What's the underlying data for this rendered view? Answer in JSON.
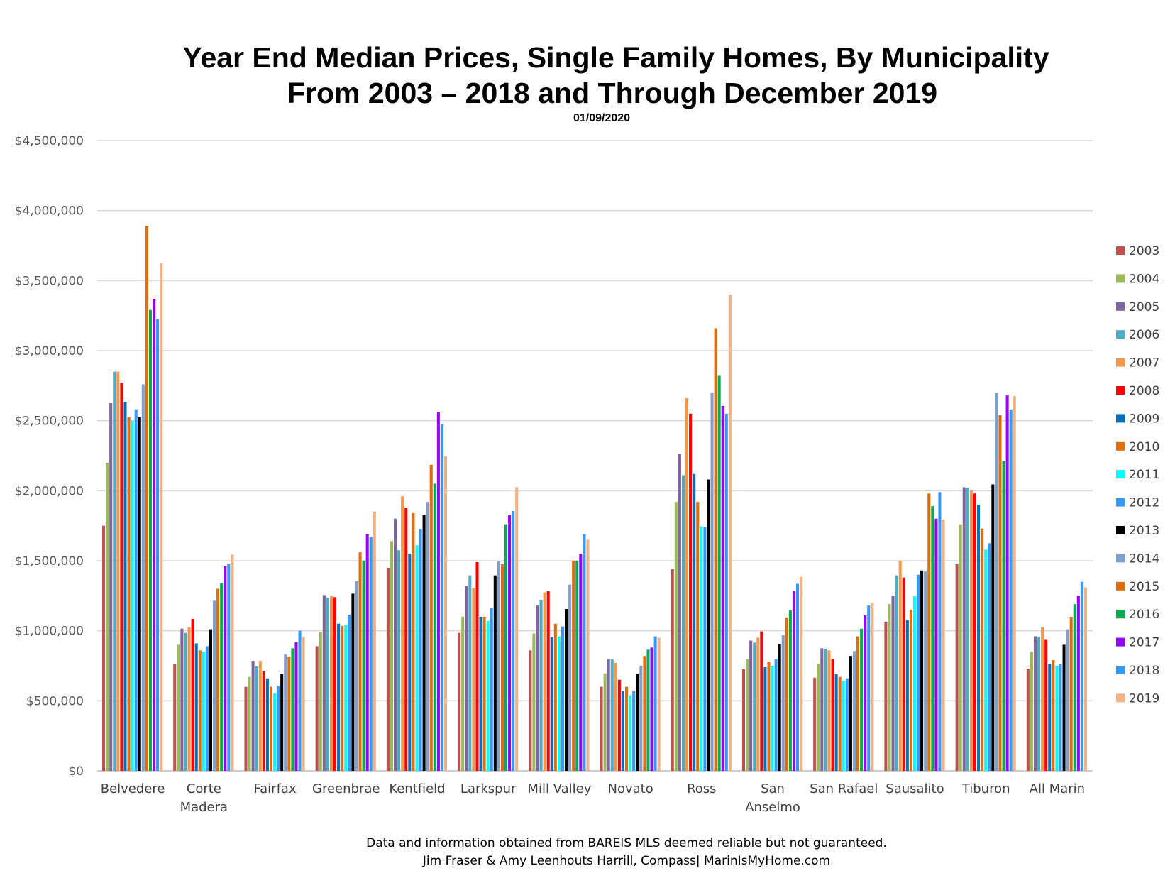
{
  "chart_data": {
    "type": "bar",
    "title": "Year End Median Prices, Single Family Homes, By Municipality",
    "subtitle": "From 2003 – 2018 and Through December 2019",
    "date": "01/09/2020",
    "ylim": [
      0,
      4500000
    ],
    "yticks": [
      "$0",
      "$500,000",
      "$1,000,000",
      "$1,500,000",
      "$2,000,000",
      "$2,500,000",
      "$3,000,000",
      "$3,500,000",
      "$4,000,000",
      "$4,500,000"
    ],
    "grid": true,
    "legend": "right",
    "categories": [
      [
        "Belvedere"
      ],
      [
        "Corte",
        "Madera"
      ],
      [
        "Fairfax"
      ],
      [
        "Greenbrae"
      ],
      [
        "Kentfield"
      ],
      [
        "Larkspur"
      ],
      [
        "Mill Valley"
      ],
      [
        "Novato"
      ],
      [
        "Ross"
      ],
      [
        "San",
        "Anselmo"
      ],
      [
        "San Rafael"
      ],
      [
        "Sausalito"
      ],
      [
        "Tiburon"
      ],
      [
        "All Marin"
      ]
    ],
    "series": [
      {
        "name": "2003",
        "color": "#c0504d",
        "values": [
          1750000,
          760000,
          600000,
          890000,
          1450000,
          985000,
          860000,
          600000,
          1440000,
          725000,
          665000,
          1065000,
          1475000,
          730000
        ]
      },
      {
        "name": "2004",
        "color": "#9bbb59",
        "values": [
          2200000,
          900000,
          670000,
          990000,
          1640000,
          1100000,
          980000,
          695000,
          1920000,
          800000,
          765000,
          1190000,
          1760000,
          850000
        ]
      },
      {
        "name": "2005",
        "color": "#8064a2",
        "values": [
          2625000,
          1015000,
          785000,
          1255000,
          1800000,
          1320000,
          1180000,
          800000,
          2260000,
          930000,
          875000,
          1250000,
          2025000,
          960000
        ]
      },
      {
        "name": "2006",
        "color": "#4bacc6",
        "values": [
          2850000,
          985000,
          745000,
          1235000,
          1575000,
          1395000,
          1220000,
          795000,
          2110000,
          915000,
          870000,
          1395000,
          2020000,
          955000
        ]
      },
      {
        "name": "2007",
        "color": "#f79646",
        "values": [
          2850000,
          1025000,
          785000,
          1250000,
          1960000,
          1305000,
          1275000,
          770000,
          2660000,
          950000,
          860000,
          1500000,
          2000000,
          1025000
        ]
      },
      {
        "name": "2008",
        "color": "#ff0000",
        "values": [
          2770000,
          1085000,
          715000,
          1240000,
          1875000,
          1490000,
          1285000,
          650000,
          2550000,
          995000,
          800000,
          1380000,
          1980000,
          940000
        ]
      },
      {
        "name": "2009",
        "color": "#0070c0",
        "values": [
          2635000,
          910000,
          660000,
          1050000,
          1550000,
          1100000,
          955000,
          570000,
          2120000,
          740000,
          690000,
          1075000,
          1900000,
          765000
        ]
      },
      {
        "name": "2010",
        "color": "#e46c0a",
        "values": [
          2525000,
          860000,
          600000,
          1035000,
          1840000,
          1100000,
          1050000,
          600000,
          1920000,
          780000,
          670000,
          1150000,
          1730000,
          790000
        ]
      },
      {
        "name": "2011",
        "color": "#00ffff",
        "values": [
          2500000,
          850000,
          555000,
          1040000,
          1610000,
          1070000,
          960000,
          540000,
          1745000,
          750000,
          640000,
          1245000,
          1580000,
          750000
        ]
      },
      {
        "name": "2012",
        "color": "#3399ff",
        "values": [
          2580000,
          890000,
          605000,
          1115000,
          1725000,
          1165000,
          1030000,
          570000,
          1740000,
          800000,
          660000,
          1400000,
          1625000,
          760000
        ]
      },
      {
        "name": "2013",
        "color": "#000000",
        "values": [
          2525000,
          1010000,
          690000,
          1265000,
          1825000,
          1395000,
          1155000,
          690000,
          2080000,
          905000,
          820000,
          1430000,
          2045000,
          900000
        ]
      },
      {
        "name": "2014",
        "color": "#7f9fd0",
        "values": [
          2760000,
          1215000,
          830000,
          1355000,
          1920000,
          1495000,
          1330000,
          750000,
          2700000,
          970000,
          855000,
          1425000,
          2700000,
          1010000
        ]
      },
      {
        "name": "2015",
        "color": "#e36c09",
        "values": [
          3890000,
          1300000,
          815000,
          1560000,
          2185000,
          1475000,
          1500000,
          820000,
          3160000,
          1095000,
          960000,
          1980000,
          2540000,
          1100000
        ]
      },
      {
        "name": "2016",
        "color": "#00b050",
        "values": [
          3290000,
          1340000,
          875000,
          1500000,
          2050000,
          1760000,
          1500000,
          865000,
          2820000,
          1145000,
          1015000,
          1890000,
          2210000,
          1190000
        ]
      },
      {
        "name": "2017",
        "color": "#9900ff",
        "values": [
          3370000,
          1460000,
          920000,
          1690000,
          2560000,
          1825000,
          1550000,
          880000,
          2605000,
          1285000,
          1110000,
          1800000,
          2680000,
          1250000
        ]
      },
      {
        "name": "2018",
        "color": "#3399ff",
        "values": [
          3225000,
          1475000,
          1000000,
          1670000,
          2475000,
          1855000,
          1690000,
          960000,
          2550000,
          1335000,
          1180000,
          1990000,
          2580000,
          1350000
        ]
      },
      {
        "name": "2019",
        "color": "#f4b183",
        "values": [
          3625000,
          1545000,
          955000,
          1850000,
          2245000,
          2025000,
          1650000,
          950000,
          3400000,
          1385000,
          1195000,
          1795000,
          2675000,
          1310000
        ]
      }
    ]
  },
  "footer": {
    "line1": "Data and information obtained from BAREIS MLS deemed reliable but not guaranteed.",
    "line2": "Jim Fraser & Amy Leenhouts Harrill, Compass| MarinIsMyHome.com"
  }
}
